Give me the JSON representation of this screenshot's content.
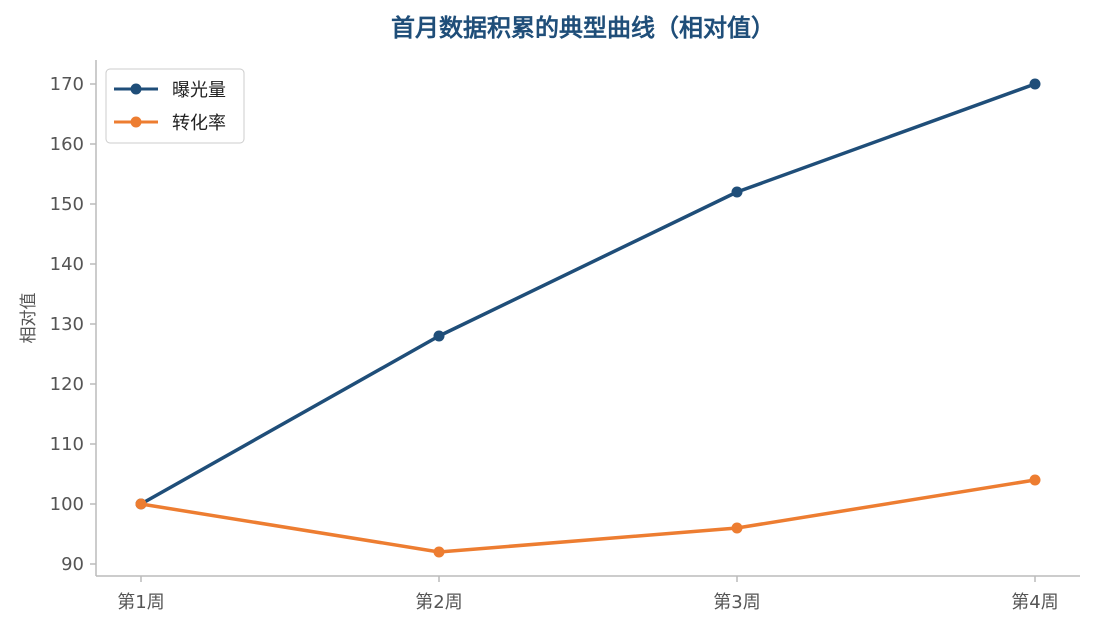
{
  "chart_data": {
    "type": "line",
    "title": "首月数据积累的典型曲线（相对值）",
    "xlabel": "",
    "ylabel": "相对值",
    "categories": [
      "第1周",
      "第2周",
      "第3周",
      "第4周"
    ],
    "series": [
      {
        "name": "曝光量",
        "values": [
          100,
          128,
          152,
          170
        ],
        "color": "#1f4e79"
      },
      {
        "name": "转化率",
        "values": [
          100,
          92,
          96,
          104
        ],
        "color": "#ed7d31"
      }
    ],
    "ylim": [
      88,
      174
    ],
    "yticks": [
      90,
      100,
      110,
      120,
      130,
      140,
      150,
      160,
      170
    ],
    "grid": false,
    "legend_position": "top-left",
    "title_color": "#1f4e79"
  }
}
